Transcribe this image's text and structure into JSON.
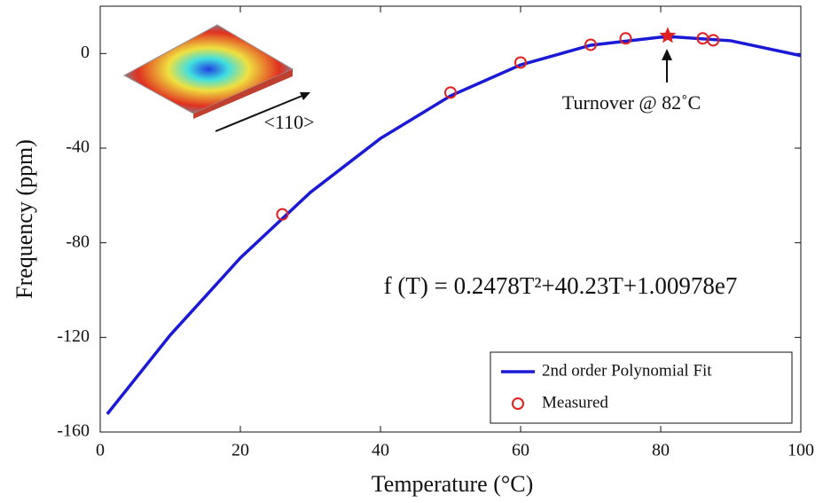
{
  "chart_data": {
    "type": "line",
    "xlabel": "Temperature (°C)",
    "ylabel": "Frequency (ppm)",
    "xlim": [
      0,
      100
    ],
    "xticks": [
      0,
      20,
      40,
      60,
      80,
      100
    ],
    "ylim": [
      -160,
      20
    ],
    "yticks": [
      -160,
      -120,
      -80,
      -40,
      0
    ],
    "legend": "lower right",
    "series": [
      {
        "name": "2nd order Polynomial Fit",
        "color": "#1a1ad6",
        "style": "line",
        "x": [
          1,
          10,
          20,
          30,
          40,
          50,
          60,
          70,
          80,
          82,
          90,
          100
        ],
        "values": [
          -152.4,
          -119.0,
          -86.4,
          -58.7,
          -35.9,
          -17.9,
          -4.8,
          3.5,
          6.9,
          7,
          5.4,
          -0.9
        ]
      },
      {
        "name": "Measured",
        "color": "#e02020",
        "style": "circle",
        "x": [
          26,
          50,
          60,
          70,
          75,
          86,
          87.5
        ],
        "values": [
          -68,
          -16.5,
          -3.8,
          3.7,
          6.4,
          6.4,
          5.6
        ]
      }
    ],
    "highlight": {
      "x": 81,
      "y": 7.5,
      "color": "#e02020"
    },
    "annotation": "Turnover @ 82˚C",
    "equation": "f (T) = 0.2478T²+40.23T+1.00978e7",
    "inset_label": "<110>"
  }
}
